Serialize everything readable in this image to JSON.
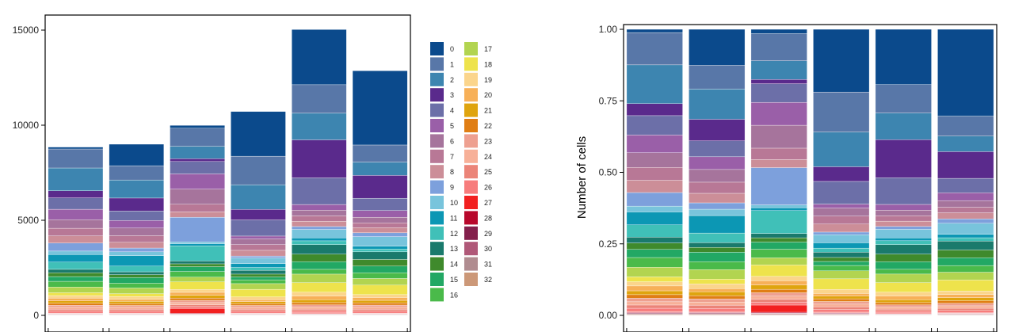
{
  "cluster_colors": {
    "0": "#0b4a8c",
    "1": "#5877a8",
    "2": "#3d85b0",
    "3": "#5a2a8c",
    "4": "#6c6fa8",
    "5": "#9a5fa8",
    "6": "#a6749c",
    "7": "#b87896",
    "8": "#cc8e98",
    "9": "#7da0dc",
    "10": "#78c4dc",
    "11": "#0c97b4",
    "12": "#40c0b8",
    "13": "#1a7a6c",
    "14": "#3f8a2c",
    "15": "#22a864",
    "16": "#4aba4a",
    "17": "#b2d450",
    "18": "#eee34c",
    "19": "#fbd58c",
    "20": "#f7b058",
    "21": "#dfa40e",
    "22": "#e07e14",
    "23": "#eea090",
    "24": "#f7b098",
    "25": "#eb8478",
    "26": "#f77c7c",
    "27": "#f22020",
    "28": "#b8082c",
    "29": "#84204c",
    "30": "#b05878",
    "31": "#b08c90",
    "32": "#cc9878"
  },
  "legend": {
    "labels": [
      "0",
      "1",
      "2",
      "3",
      "4",
      "5",
      "6",
      "7",
      "8",
      "9",
      "10",
      "11",
      "12",
      "13",
      "14",
      "15",
      "16",
      "17",
      "18",
      "19",
      "20",
      "21",
      "22",
      "23",
      "24",
      "25",
      "26",
      "27",
      "28",
      "29",
      "30",
      "31",
      "32"
    ]
  },
  "chart_data": [
    {
      "type": "bar",
      "stacked": true,
      "title": "",
      "xlabel": "",
      "ylabel": "",
      "ylim": [
        0,
        15000
      ],
      "yticks": [
        0,
        5000,
        10000,
        15000
      ],
      "categories": [
        "",
        "",
        "",
        "",
        "",
        ""
      ],
      "stack_order": [
        "32",
        "31",
        "30",
        "29",
        "28",
        "27",
        "26",
        "25",
        "24",
        "23",
        "22",
        "21",
        "20",
        "19",
        "18",
        "17",
        "16",
        "15",
        "14",
        "13",
        "12",
        "11",
        "10",
        "9",
        "8",
        "7",
        "6",
        "5",
        "4",
        "3",
        "2",
        "1",
        "0"
      ],
      "series": [
        {
          "name": "0",
          "values": [
            100,
            1130,
            150,
            2350,
            2900,
            3900
          ]
        },
        {
          "name": "1",
          "values": [
            1000,
            750,
            950,
            1500,
            1500,
            900
          ]
        },
        {
          "name": "2",
          "values": [
            1200,
            950,
            650,
            1300,
            1400,
            700
          ]
        },
        {
          "name": "3",
          "values": [
            370,
            680,
            150,
            550,
            2000,
            1200
          ]
        },
        {
          "name": "4",
          "values": [
            600,
            500,
            650,
            850,
            1400,
            650
          ]
        },
        {
          "name": "5",
          "values": [
            550,
            400,
            800,
            150,
            300,
            350
          ]
        },
        {
          "name": "6",
          "values": [
            450,
            400,
            800,
            300,
            300,
            300
          ]
        },
        {
          "name": "7",
          "values": [
            400,
            350,
            400,
            300,
            280,
            250
          ]
        },
        {
          "name": "8",
          "values": [
            380,
            300,
            280,
            300,
            280,
            270
          ]
        },
        {
          "name": "9",
          "values": [
            420,
            200,
            1300,
            100,
            150,
            200
          ]
        },
        {
          "name": "10",
          "values": [
            180,
            200,
            100,
            300,
            450,
            500
          ]
        },
        {
          "name": "11",
          "values": [
            400,
            550,
            100,
            200,
            150,
            150
          ]
        },
        {
          "name": "12",
          "values": [
            380,
            300,
            800,
            150,
            200,
            150
          ]
        },
        {
          "name": "13",
          "values": [
            180,
            150,
            150,
            200,
            500,
            400
          ]
        },
        {
          "name": "14",
          "values": [
            200,
            150,
            150,
            150,
            400,
            350
          ]
        },
        {
          "name": "15",
          "values": [
            250,
            300,
            250,
            150,
            400,
            350
          ]
        },
        {
          "name": "16",
          "values": [
            300,
            250,
            300,
            200,
            250,
            300
          ]
        },
        {
          "name": "17",
          "values": [
            300,
            300,
            250,
            300,
            450,
            350
          ]
        },
        {
          "name": "18",
          "values": [
            150,
            150,
            400,
            400,
            500,
            500
          ]
        },
        {
          "name": "19",
          "values": [
            130,
            150,
            150,
            150,
            200,
            150
          ]
        },
        {
          "name": "20",
          "values": [
            150,
            100,
            150,
            100,
            200,
            150
          ]
        },
        {
          "name": "21",
          "values": [
            120,
            120,
            150,
            100,
            150,
            130
          ]
        },
        {
          "name": "22",
          "values": [
            110,
            100,
            120,
            100,
            120,
            120
          ]
        },
        {
          "name": "23",
          "values": [
            110,
            100,
            120,
            100,
            110,
            110
          ]
        },
        {
          "name": "24",
          "values": [
            100,
            100,
            110,
            100,
            110,
            110
          ]
        },
        {
          "name": "25",
          "values": [
            100,
            100,
            100,
            100,
            100,
            100
          ]
        },
        {
          "name": "26",
          "values": [
            100,
            100,
            100,
            100,
            100,
            100
          ]
        },
        {
          "name": "27",
          "values": [
            20,
            20,
            250,
            20,
            30,
            20
          ]
        },
        {
          "name": "28",
          "values": [
            20,
            20,
            30,
            20,
            20,
            20
          ]
        },
        {
          "name": "29",
          "values": [
            20,
            20,
            20,
            20,
            20,
            20
          ]
        },
        {
          "name": "30",
          "values": [
            20,
            20,
            20,
            20,
            20,
            20
          ]
        },
        {
          "name": "31",
          "values": [
            20,
            20,
            20,
            20,
            20,
            20
          ]
        },
        {
          "name": "32",
          "values": [
            20,
            20,
            20,
            20,
            20,
            20
          ]
        }
      ]
    },
    {
      "type": "bar",
      "stacked": true,
      "normalized": true,
      "title": "",
      "xlabel": "",
      "ylabel": "Number of cells",
      "ylim": [
        0,
        1
      ],
      "yticks": [
        0,
        0.25,
        0.5,
        0.75,
        1
      ],
      "ytick_labels": [
        "0.00",
        "0.25",
        "0.50",
        "0.75",
        "1.00"
      ],
      "categories": [
        "",
        "",
        "",
        "",
        "",
        ""
      ],
      "derived_from": "proportions of chart 0 stacks"
    }
  ]
}
